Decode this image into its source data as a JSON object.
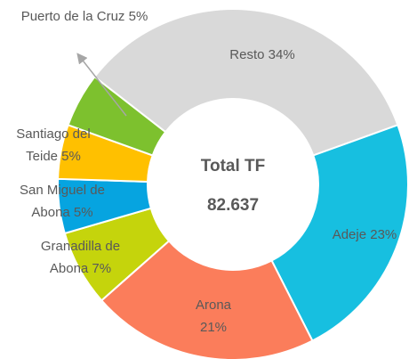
{
  "chart_data": {
    "type": "donut",
    "center_title": "Total TF",
    "center_value": "82.637",
    "categories": [
      "Resto",
      "Adeje",
      "Arona",
      "Granadilla de Abona",
      "San Miguel de Abona",
      "Santiago del Teide",
      "Puerto de la Cruz"
    ],
    "values": [
      34,
      23,
      21,
      7,
      5,
      5,
      5
    ],
    "value_labels": [
      "34%",
      "23%",
      "21%",
      "7%",
      "5%",
      "5%",
      "5%"
    ],
    "colors": [
      "#d9d9d9",
      "#17bfe0",
      "#fb7d5b",
      "#c5d40c",
      "#06a4e0",
      "#ffc000",
      "#7dc12e"
    ]
  }
}
